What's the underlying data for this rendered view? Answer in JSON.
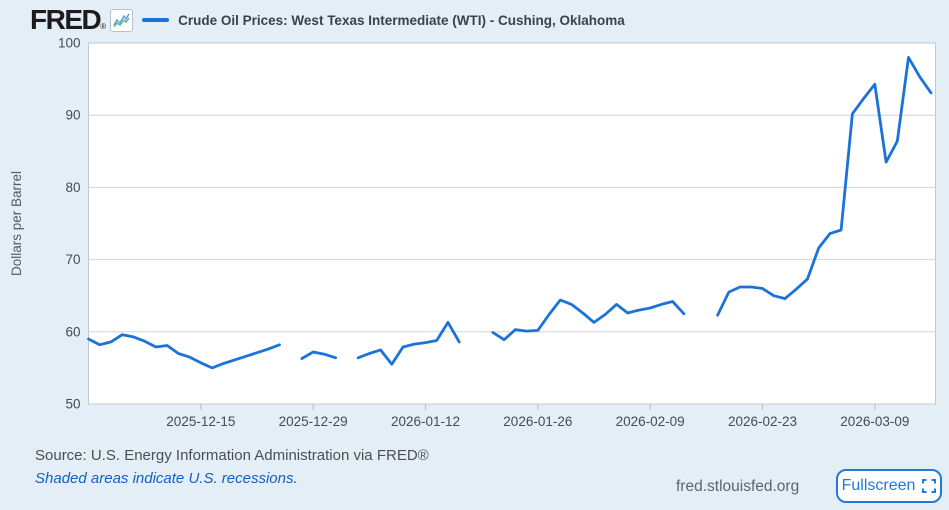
{
  "header": {
    "logo": "FRED",
    "registered": "®"
  },
  "footer": {
    "source": "Source: U.S. Energy Information Administration via FRED®",
    "recession_note": "Shaded areas indicate U.S. recessions.",
    "site": "fred.stlouisfed.org",
    "fullscreen_label": "Fullscreen"
  },
  "colors": {
    "line": "#1b73d9",
    "background": "#e4eef7",
    "link_blue": "#1161c4",
    "button_blue": "#2478d8",
    "plot_border": "#c2c8cd",
    "gridline": "#cfd4d8",
    "axis_text": "#454c52"
  },
  "chart_data": {
    "type": "line",
    "title": "Crude Oil Prices: West Texas Intermediate (WTI) - Cushing, Oklahoma",
    "xlabel": "",
    "ylabel": "Dollars per Barrel",
    "ylim": [
      50,
      100
    ],
    "y_ticks": [
      50,
      60,
      70,
      80,
      90,
      100
    ],
    "grid": "horizontal",
    "legend_position": "top-left",
    "x_tick_labels": [
      "2025-12-15",
      "2025-12-29",
      "2026-01-12",
      "2026-01-26",
      "2026-02-09",
      "2026-02-23",
      "2026-03-09"
    ],
    "x_tick_slots": [
      10,
      20,
      30,
      40,
      50,
      60,
      70
    ],
    "dates": [
      "2025-12-01",
      "2025-12-02",
      "2025-12-03",
      "2025-12-04",
      "2025-12-05",
      "2025-12-08",
      "2025-12-09",
      "2025-12-10",
      "2025-12-11",
      "2025-12-12",
      "2025-12-15",
      "2025-12-16",
      "2025-12-17",
      "2025-12-18",
      "2025-12-19",
      "2025-12-22",
      "2025-12-23",
      "2025-12-24",
      "2025-12-25",
      "2025-12-26",
      "2025-12-29",
      "2025-12-30",
      "2025-12-31",
      "2026-01-01",
      "2026-01-02",
      "2026-01-05",
      "2026-01-06",
      "2026-01-07",
      "2026-01-08",
      "2026-01-09",
      "2026-01-12",
      "2026-01-13",
      "2026-01-14",
      "2026-01-15",
      "2026-01-16",
      "2026-01-19",
      "2026-01-20",
      "2026-01-21",
      "2026-01-22",
      "2026-01-23",
      "2026-01-26",
      "2026-01-27",
      "2026-01-28",
      "2026-01-29",
      "2026-01-30",
      "2026-02-02",
      "2026-02-03",
      "2026-02-04",
      "2026-02-05",
      "2026-02-06",
      "2026-02-09",
      "2026-02-10",
      "2026-02-11",
      "2026-02-12",
      "2026-02-13",
      "2026-02-16",
      "2026-02-17",
      "2026-02-18",
      "2026-02-19",
      "2026-02-20",
      "2026-02-23",
      "2026-02-24",
      "2026-02-25",
      "2026-02-26",
      "2026-02-27",
      "2026-03-02",
      "2026-03-03",
      "2026-03-04",
      "2026-03-05",
      "2026-03-06",
      "2026-03-09",
      "2026-03-10",
      "2026-03-11",
      "2026-03-12",
      "2026-03-13",
      "2026-03-16"
    ],
    "values": [
      59.0,
      58.2,
      58.6,
      59.6,
      59.3,
      58.7,
      57.9,
      58.1,
      57.0,
      56.5,
      55.7,
      55.0,
      55.6,
      56.1,
      56.6,
      57.1,
      57.6,
      58.2,
      null,
      56.3,
      57.2,
      56.9,
      56.4,
      null,
      56.4,
      57.0,
      57.5,
      55.5,
      57.9,
      58.3,
      58.5,
      58.8,
      61.3,
      58.6,
      null,
      null,
      59.9,
      58.9,
      60.3,
      60.1,
      60.2,
      62.4,
      64.4,
      63.8,
      62.6,
      61.3,
      62.4,
      63.8,
      62.6,
      63.0,
      63.3,
      63.8,
      64.2,
      62.5,
      null,
      null,
      62.3,
      65.5,
      66.2,
      66.2,
      66.0,
      65.0,
      64.6,
      65.9,
      67.3,
      71.6,
      73.6,
      74.1,
      90.2,
      92.3,
      94.3,
      83.5,
      86.4,
      98.0,
      95.3,
      93.1
    ]
  }
}
